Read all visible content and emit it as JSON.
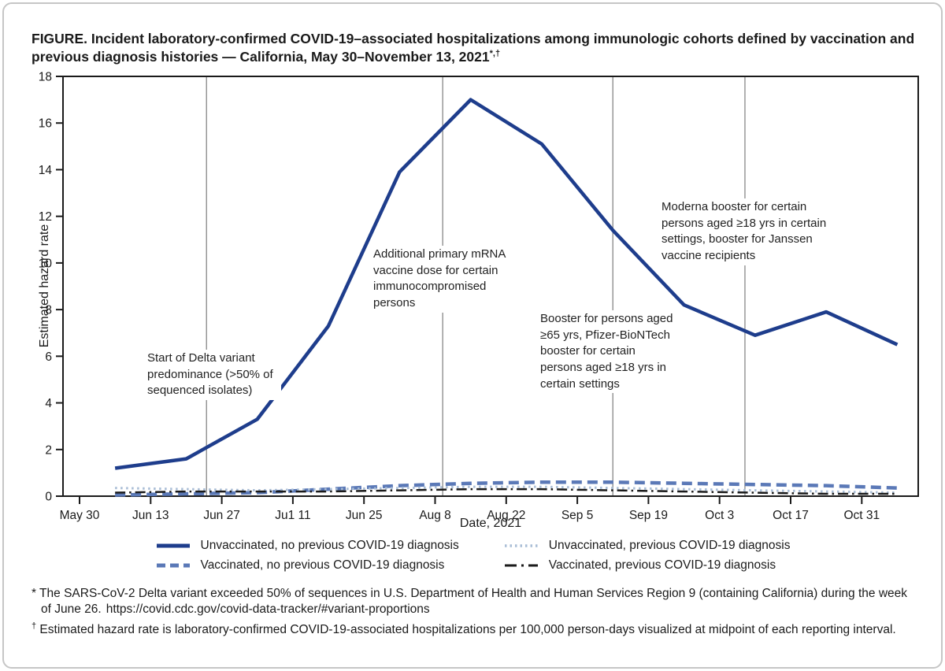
{
  "header": {
    "title": "FIGURE. Incident laboratory-confirmed COVID-19–associated hospitalizations among immunologic cohorts defined by vaccination and previous diagnosis histories — California, May 30–November 13, 2021",
    "title_sup": "*,†"
  },
  "chart_data": {
    "type": "line",
    "title": "Incident laboratory-confirmed COVID-19–associated hospitalizations among immunologic cohorts defined by vaccination and previous diagnosis histories — California, May 30–November 13, 2021",
    "xlabel": "Date, 2021",
    "ylabel": "Estimated hazard rate",
    "ylim": [
      0,
      18
    ],
    "y_ticks": [
      0,
      2,
      4,
      6,
      8,
      10,
      12,
      14,
      16,
      18
    ],
    "x_tick_labels": [
      "May 30",
      "Jun 13",
      "Jun 27",
      "Ju1 11",
      "Jun 25",
      "Aug 8",
      "Aug 22",
      "Sep 5",
      "Sep 19",
      "Oct 3",
      "Oct 17",
      "Oct 31"
    ],
    "x_tick_days": [
      0,
      14,
      28,
      42,
      56,
      70,
      84,
      98,
      112,
      126,
      140,
      154
    ],
    "x_days": [
      7,
      21,
      35,
      49,
      63,
      77,
      91,
      105,
      119,
      133,
      147,
      161
    ],
    "grid": "vertical-event-lines-only",
    "legend_position": "bottom",
    "colors": {
      "axis": "#1a1a1a",
      "grid": "#909090"
    },
    "series": [
      {
        "name": "Unvaccinated, no previous COVID-19 diagnosis",
        "style": "solid",
        "color": "#1e3d8c",
        "width": 4.5,
        "values": [
          1.2,
          1.6,
          3.3,
          7.3,
          13.9,
          17.0,
          15.1,
          11.4,
          8.2,
          6.9,
          7.9,
          6.5
        ]
      },
      {
        "name": "Vaccinated, no previous COVID-19 diagnosis",
        "style": "dashed",
        "color": "#5b79b7",
        "width": 4.5,
        "values": [
          0.05,
          0.1,
          0.15,
          0.3,
          0.45,
          0.55,
          0.6,
          0.6,
          0.55,
          0.5,
          0.45,
          0.35
        ]
      },
      {
        "name": "Unvaccinated, previous COVID-19 diagnosis",
        "style": "dotted",
        "color": "#a9bdd6",
        "width": 3,
        "values": [
          0.35,
          0.3,
          0.25,
          0.3,
          0.35,
          0.4,
          0.4,
          0.35,
          0.3,
          0.25,
          0.2,
          0.15
        ]
      },
      {
        "name": "Vaccinated, previous COVID-19 diagnosis",
        "style": "dashdot",
        "color": "#1b1b1b",
        "width": 2.5,
        "values": [
          0.15,
          0.2,
          0.2,
          0.2,
          0.25,
          0.3,
          0.3,
          0.25,
          0.2,
          0.15,
          0.1,
          0.1
        ]
      }
    ],
    "event_lines": [
      {
        "day": 25,
        "label": "Start of Delta variant predominance (>50% of sequenced isolates)"
      },
      {
        "day": 71.5,
        "label": "Additional primary mRNA vaccine dose for certain immunocompromised persons"
      },
      {
        "day": 105,
        "label": "Booster for persons aged ≥65 yrs, Pfizer-BioNTech booster for certain persons aged ≥18 yrs in certain settings"
      },
      {
        "day": 131,
        "label": "Moderna booster for certain persons aged ≥18 yrs in certain settings, booster for Janssen vaccine recipients"
      }
    ]
  },
  "footnotes": {
    "f1_sym": "*",
    "f1_text": "* The SARS-CoV-2 Delta variant exceeded 50% of sequences in U.S. Department of Health and Human Services Region 9 (containing California) during the week of June 26.",
    "f1_url": "https://covid.cdc.gov/covid-data-tracker/#variant-proportions",
    "f2_sym": "†",
    "f2_text": " Estimated hazard rate is laboratory-confirmed COVID-19-associated hospitalizations per 100,000 person-days visualized at midpoint of each reporting interval."
  }
}
